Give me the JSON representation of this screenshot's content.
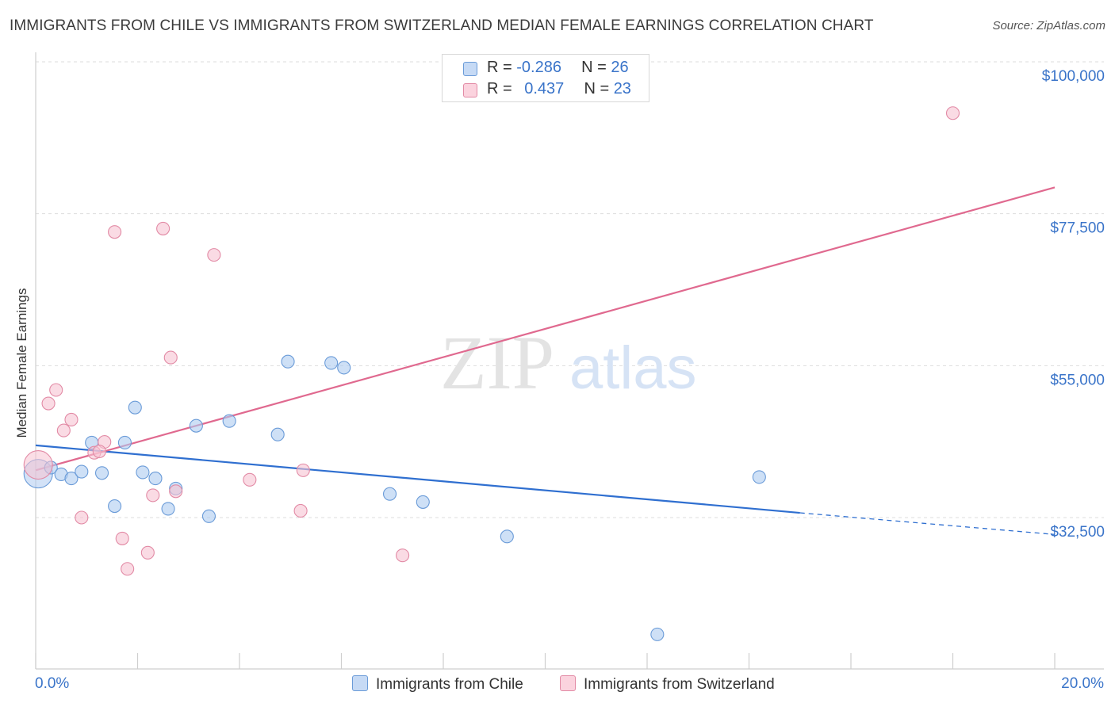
{
  "title": "IMMIGRANTS FROM CHILE VS IMMIGRANTS FROM SWITZERLAND MEDIAN FEMALE EARNINGS CORRELATION CHART",
  "source": "Source: ZipAtlas.com",
  "watermark": {
    "zip": "ZIP",
    "atlas": "atlas"
  },
  "legend_top": {
    "rows": [
      {
        "r_label": "R = ",
        "r_value": "-0.286",
        "n_label": "N = ",
        "n_value": "26"
      },
      {
        "r_label": "R = ",
        "r_value": "0.437",
        "n_label": "N = ",
        "n_value": "23"
      }
    ]
  },
  "colors": {
    "chile_fill": "#aecbf0",
    "chile_stroke": "#6a9bd8",
    "chile_line": "#2f6fd0",
    "swiss_fill": "#f7c3d2",
    "swiss_stroke": "#e28aa5",
    "swiss_line": "#e0698f",
    "axis_text": "#3a74c9",
    "grid": "#dddddd"
  },
  "chart_data": {
    "type": "scatter",
    "title": "IMMIGRANTS FROM CHILE VS IMMIGRANTS FROM SWITZERLAND MEDIAN FEMALE EARNINGS CORRELATION CHART",
    "xlabel": "",
    "ylabel": "Median Female Earnings",
    "xlim": [
      0,
      20
    ],
    "ylim": [
      10500,
      101000
    ],
    "x_tick_labels": [
      "0.0%",
      "20.0%"
    ],
    "y_ticks": [
      32500,
      55000,
      77500,
      100000
    ],
    "y_tick_labels": [
      "$32,500",
      "$55,000",
      "$77,500",
      "$100,000"
    ],
    "grid": true,
    "legend_position": "top-center",
    "series": [
      {
        "name": "Immigrants from Chile",
        "r": -0.286,
        "n": 26,
        "points": [
          {
            "x": 0.05,
            "y": 39000,
            "big": true
          },
          {
            "x": 0.3,
            "y": 39900
          },
          {
            "x": 0.5,
            "y": 38900
          },
          {
            "x": 0.7,
            "y": 38300
          },
          {
            "x": 0.9,
            "y": 39300
          },
          {
            "x": 1.1,
            "y": 43600
          },
          {
            "x": 1.3,
            "y": 39100
          },
          {
            "x": 1.55,
            "y": 34200
          },
          {
            "x": 1.75,
            "y": 43600
          },
          {
            "x": 1.95,
            "y": 48800
          },
          {
            "x": 2.1,
            "y": 39200
          },
          {
            "x": 2.35,
            "y": 38300
          },
          {
            "x": 2.6,
            "y": 33800
          },
          {
            "x": 2.75,
            "y": 36800
          },
          {
            "x": 3.15,
            "y": 46100
          },
          {
            "x": 3.4,
            "y": 32700
          },
          {
            "x": 3.8,
            "y": 46800
          },
          {
            "x": 4.75,
            "y": 44800
          },
          {
            "x": 4.95,
            "y": 55600
          },
          {
            "x": 5.8,
            "y": 55400
          },
          {
            "x": 6.05,
            "y": 54700
          },
          {
            "x": 6.95,
            "y": 36000
          },
          {
            "x": 7.6,
            "y": 34800
          },
          {
            "x": 9.25,
            "y": 29700
          },
          {
            "x": 12.2,
            "y": 15200
          },
          {
            "x": 14.2,
            "y": 38500
          }
        ],
        "trend": {
          "x": [
            0,
            15.0
          ],
          "y": [
            43200,
            33200
          ],
          "dashed_to": {
            "x": 20,
            "y": 30000
          }
        }
      },
      {
        "name": "Immigrants from Switzerland",
        "r": 0.437,
        "n": 23,
        "points": [
          {
            "x": 0.05,
            "y": 40300,
            "big": true
          },
          {
            "x": 0.25,
            "y": 49400
          },
          {
            "x": 0.4,
            "y": 51400
          },
          {
            "x": 0.55,
            "y": 45400
          },
          {
            "x": 0.7,
            "y": 47000
          },
          {
            "x": 0.9,
            "y": 32500
          },
          {
            "x": 1.15,
            "y": 42100
          },
          {
            "x": 1.35,
            "y": 43700
          },
          {
            "x": 1.55,
            "y": 74800
          },
          {
            "x": 1.7,
            "y": 29400
          },
          {
            "x": 1.8,
            "y": 24900
          },
          {
            "x": 2.2,
            "y": 27300
          },
          {
            "x": 2.3,
            "y": 35800
          },
          {
            "x": 2.5,
            "y": 75300
          },
          {
            "x": 2.65,
            "y": 56200
          },
          {
            "x": 2.75,
            "y": 36400
          },
          {
            "x": 3.5,
            "y": 71400
          },
          {
            "x": 4.2,
            "y": 38100
          },
          {
            "x": 5.2,
            "y": 33500
          },
          {
            "x": 5.25,
            "y": 39500
          },
          {
            "x": 7.2,
            "y": 26900
          },
          {
            "x": 18.0,
            "y": 92400
          },
          {
            "x": 1.25,
            "y": 42300
          }
        ],
        "trend": {
          "x": [
            0,
            20
          ],
          "y": [
            39500,
            81400
          ]
        }
      }
    ]
  },
  "bottom_legend": {
    "items": [
      {
        "label": "Immigrants from Chile"
      },
      {
        "label": "Immigrants from Switzerland"
      }
    ]
  }
}
